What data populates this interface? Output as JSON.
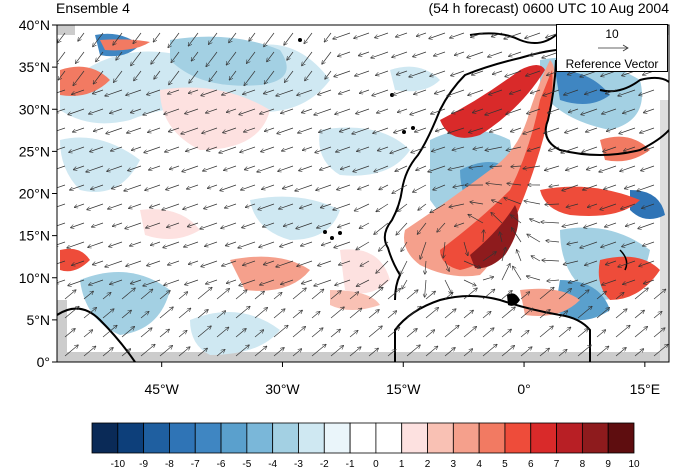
{
  "header": {
    "left_title": "Ensemble 4",
    "right_title": "(54 h forecast) 0600 UTC 10 Aug 2004"
  },
  "map": {
    "lat_labels": [
      "40°N",
      "35°N",
      "30°N",
      "25°N",
      "20°N",
      "15°N",
      "10°N",
      "5°N",
      "0°"
    ],
    "lon_labels": [
      "45°W",
      "30°W",
      "15°W",
      "0°",
      "15°E"
    ],
    "lat_range": [
      0,
      40
    ],
    "lon_range": [
      -58,
      18
    ],
    "colors": {
      "land_line": "#000000",
      "vector": "#333333",
      "missing": "#cccccc"
    }
  },
  "reference_vector": {
    "magnitude": "10",
    "label": "Reference Vector"
  },
  "colorbar": {
    "labels": [
      "-10",
      "-9",
      "-8",
      "-7",
      "-6",
      "-5",
      "-4",
      "-3",
      "-2",
      "-1",
      "0",
      "1",
      "2",
      "3",
      "4",
      "5",
      "6",
      "7",
      "8",
      "9",
      "10"
    ],
    "colors": [
      "#0a2a57",
      "#0d3f7a",
      "#1f5fa0",
      "#2f74b6",
      "#3f86c2",
      "#5aa0cd",
      "#7ab7d9",
      "#a3d0e3",
      "#cfe8f2",
      "#eaf5fa",
      "#ffffff",
      "#ffffff",
      "#fde1e0",
      "#f9c1b4",
      "#f5a08c",
      "#f27a62",
      "#ee4c3a",
      "#d92a2a",
      "#b81f25",
      "#8e1b1d",
      "#5e0d0f"
    ]
  }
}
